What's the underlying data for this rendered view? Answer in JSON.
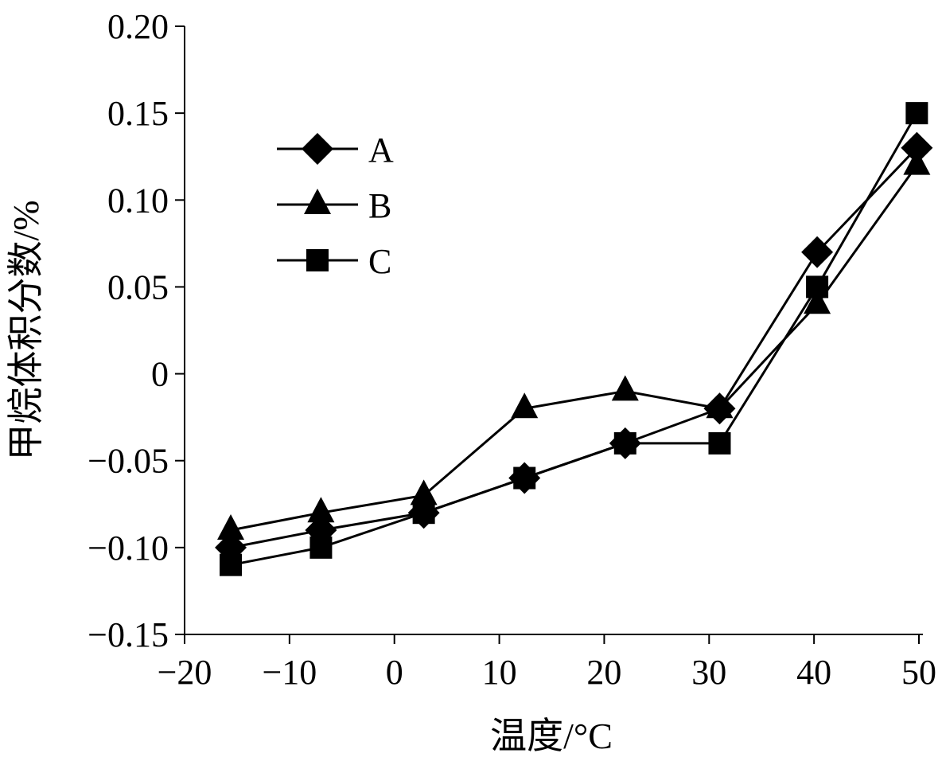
{
  "chart_data": {
    "type": "line",
    "title": "",
    "xlabel": "温度/°C",
    "ylabel": "甲烷体积分数/%",
    "xlim": [
      -20,
      50
    ],
    "ylim": [
      -0.15,
      0.2
    ],
    "xticks": [
      -20,
      -10,
      0,
      10,
      20,
      30,
      40,
      50
    ],
    "xtick_labels": [
      "−20",
      "−10",
      "0",
      "10",
      "20",
      "30",
      "40",
      "50"
    ],
    "yticks": [
      -0.15,
      -0.1,
      -0.05,
      0,
      0.05,
      0.1,
      0.15,
      0.2
    ],
    "ytick_labels": [
      "−0.15",
      "−0.10",
      "−0.05",
      "0",
      "0.05",
      "0.10",
      "0.15",
      "0.20"
    ],
    "grid": false,
    "legend_placement": "top-left",
    "x": [
      -15.6,
      -7,
      2.8,
      12.4,
      22,
      31,
      40.3,
      49.8
    ],
    "series": [
      {
        "name": "A",
        "marker": "diamond",
        "values": [
          -0.1,
          -0.09,
          -0.08,
          -0.06,
          -0.04,
          -0.02,
          0.07,
          0.13
        ]
      },
      {
        "name": "B",
        "marker": "triangle",
        "values": [
          -0.09,
          -0.08,
          -0.07,
          -0.02,
          -0.01,
          -0.02,
          0.04,
          0.12
        ]
      },
      {
        "name": "C",
        "marker": "square",
        "values": [
          -0.11,
          -0.1,
          -0.08,
          -0.06,
          -0.04,
          -0.04,
          0.05,
          0.15
        ]
      }
    ],
    "colors": {
      "line": "#000000",
      "marker": "#000000"
    }
  }
}
